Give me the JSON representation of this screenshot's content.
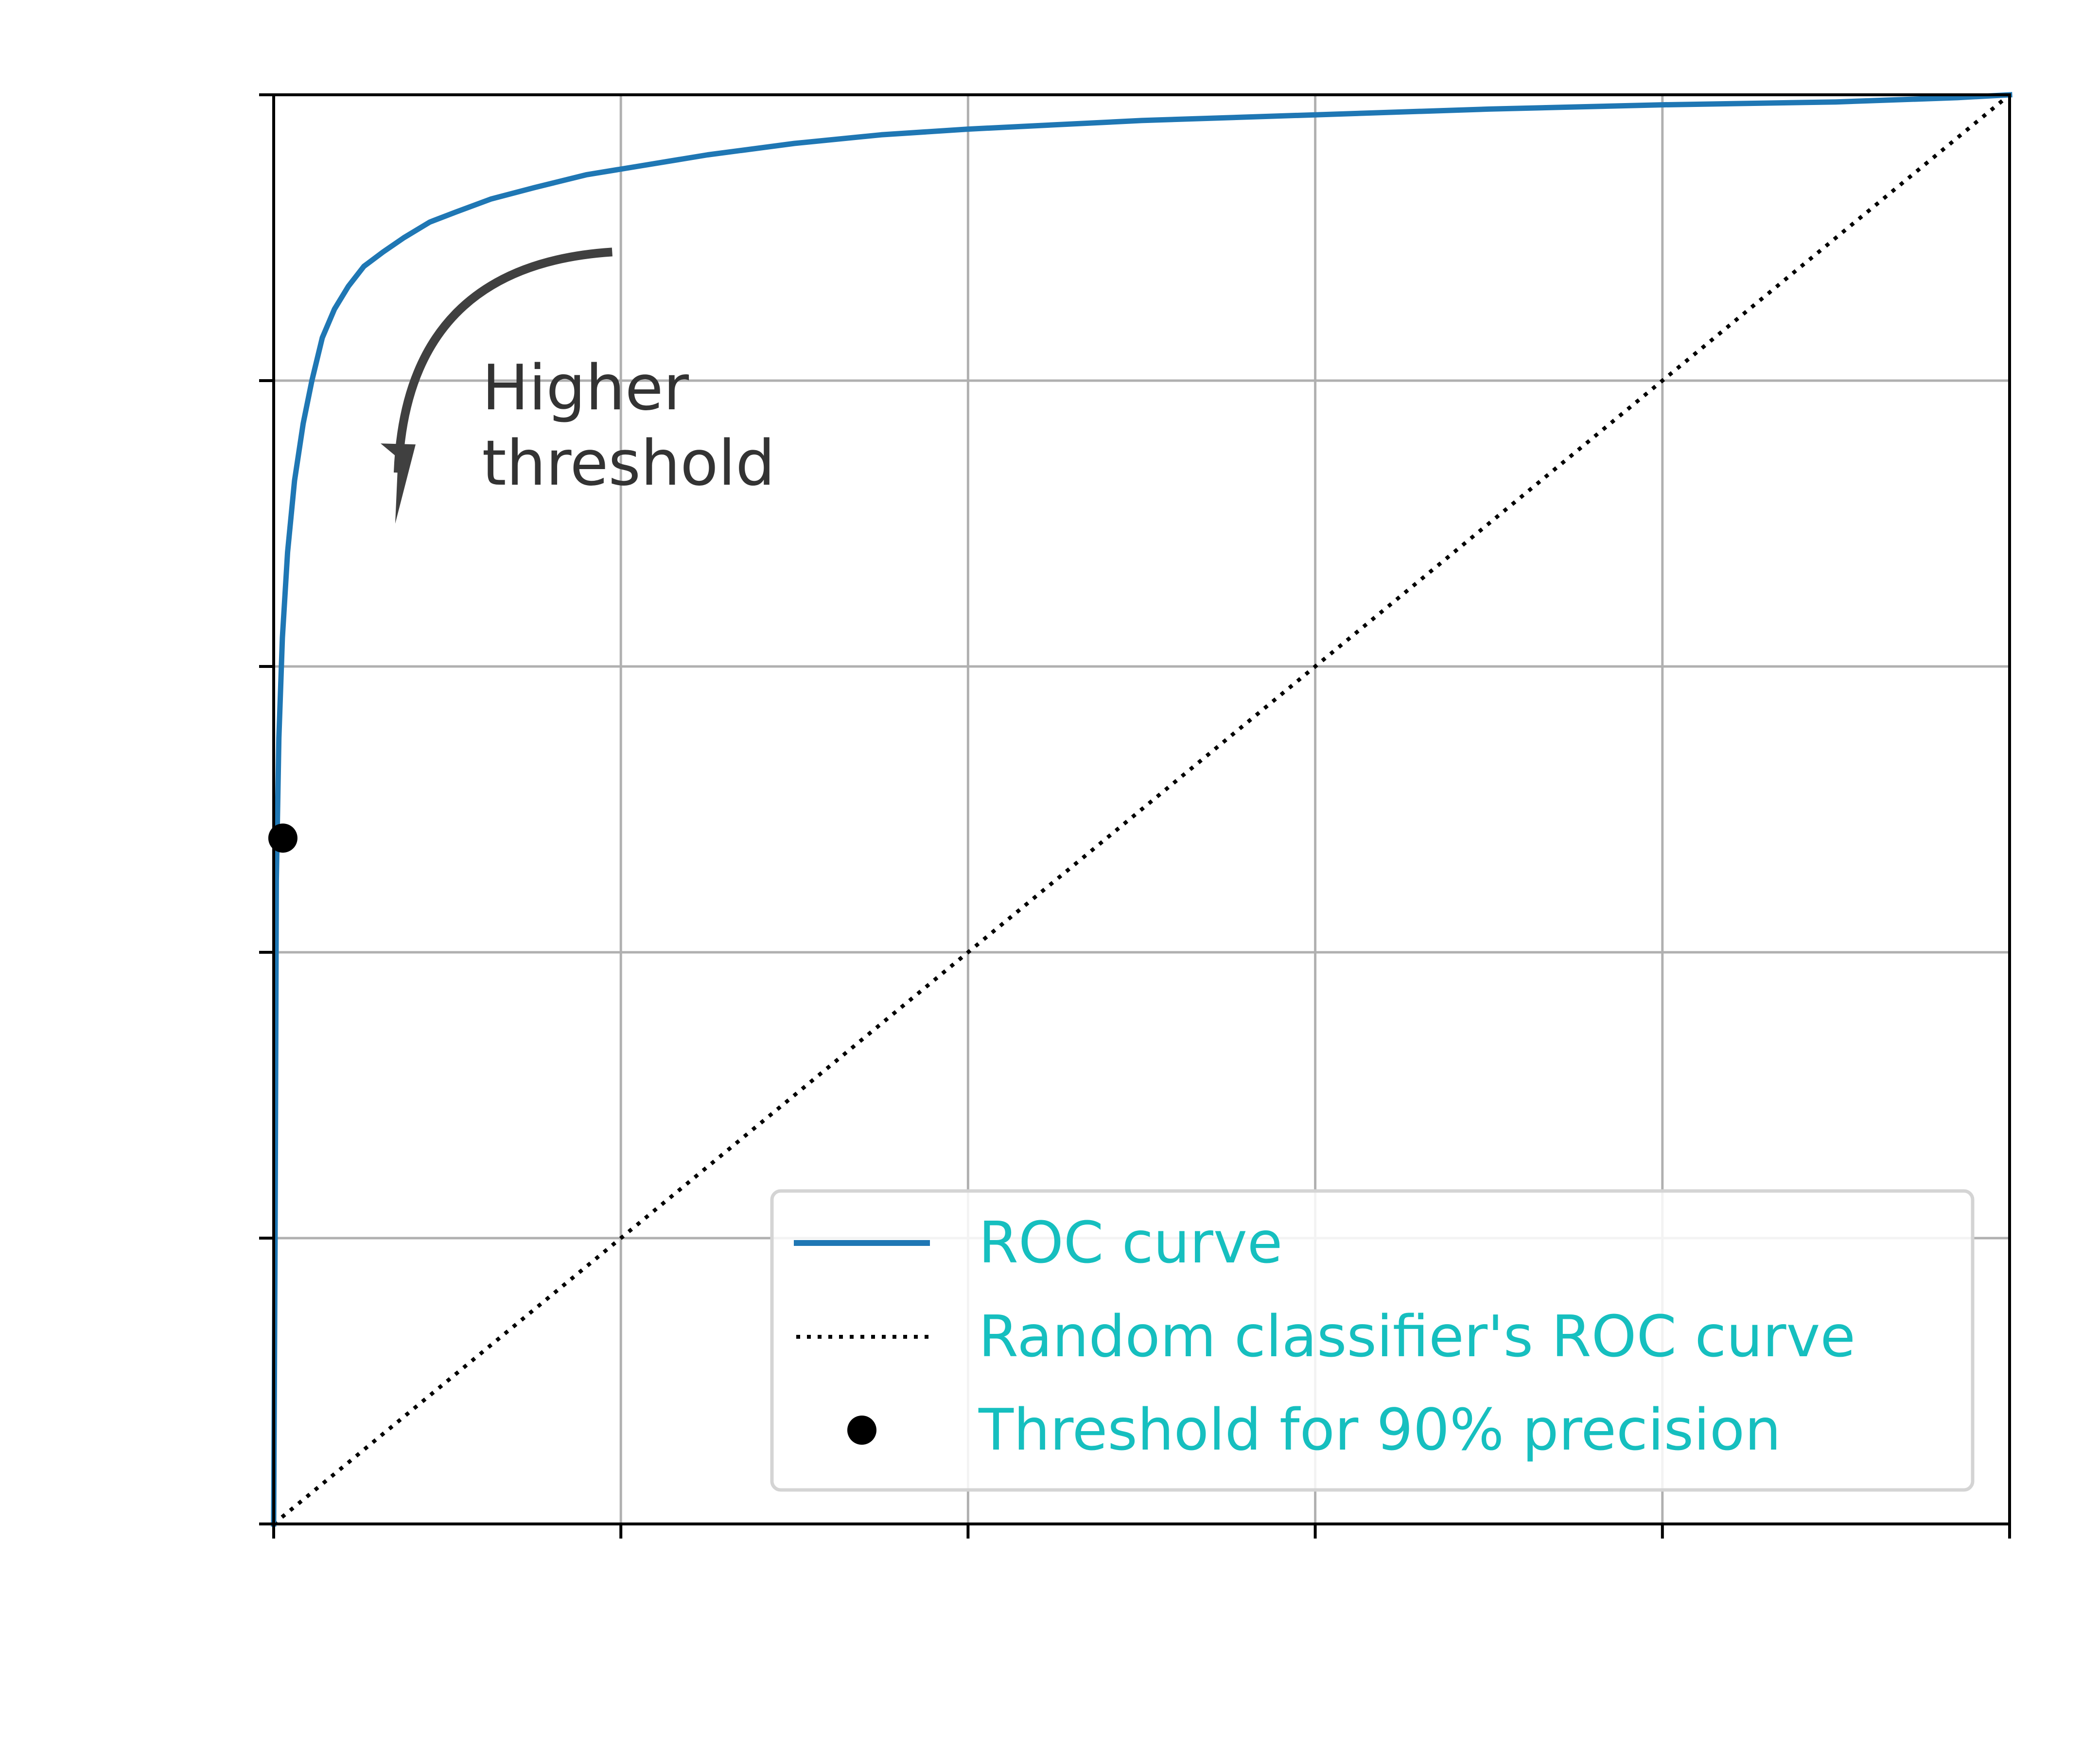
{
  "chart_data": {
    "type": "line",
    "title": "",
    "xlabel": "",
    "ylabel": "",
    "xlim": [
      0,
      1
    ],
    "ylim": [
      0,
      1
    ],
    "xticks": [
      0,
      0.2,
      0.4,
      0.6,
      0.8,
      1.0
    ],
    "yticks": [
      0,
      0.2,
      0.4,
      0.6,
      0.8,
      1.0
    ],
    "grid": true,
    "legend_position": "lower-right",
    "series": [
      {
        "name": "ROC curve",
        "style": "solid",
        "color": "#1f77b4",
        "x": [
          0.0,
          0.0008,
          0.0015,
          0.003,
          0.005,
          0.008,
          0.012,
          0.017,
          0.022,
          0.028,
          0.035,
          0.043,
          0.052,
          0.063,
          0.075,
          0.09,
          0.105,
          0.125,
          0.15,
          0.18,
          0.21,
          0.25,
          0.3,
          0.35,
          0.4,
          0.5,
          0.6,
          0.7,
          0.8,
          0.9,
          0.97,
          1.0
        ],
        "y": [
          0.0,
          0.2,
          0.45,
          0.55,
          0.62,
          0.68,
          0.73,
          0.77,
          0.8,
          0.83,
          0.85,
          0.866,
          0.88,
          0.89,
          0.9,
          0.911,
          0.918,
          0.927,
          0.935,
          0.944,
          0.95,
          0.958,
          0.966,
          0.972,
          0.976,
          0.982,
          0.986,
          0.99,
          0.993,
          0.995,
          0.998,
          1.0
        ]
      },
      {
        "name": "Random classifier's ROC curve",
        "style": "dotted",
        "color": "#000000",
        "x": [
          0,
          1
        ],
        "y": [
          0,
          1
        ]
      },
      {
        "name": "Threshold for 90% precision",
        "style": "point",
        "color": "#000000",
        "x": [
          0.0053
        ],
        "y": [
          0.4799
        ]
      }
    ],
    "annotations": [
      {
        "text_lines": [
          "Higher",
          "threshold"
        ],
        "at": [
          0.12,
          0.78
        ],
        "arrow_from": [
          0.195,
          0.89
        ],
        "arrow_to": [
          0.07,
          0.705
        ],
        "color": "#404040"
      }
    ],
    "colors": {
      "legend_text": "#16BFBF",
      "annotation": "#333333",
      "grid": "#b0b0b0",
      "axis": "#000000"
    }
  }
}
